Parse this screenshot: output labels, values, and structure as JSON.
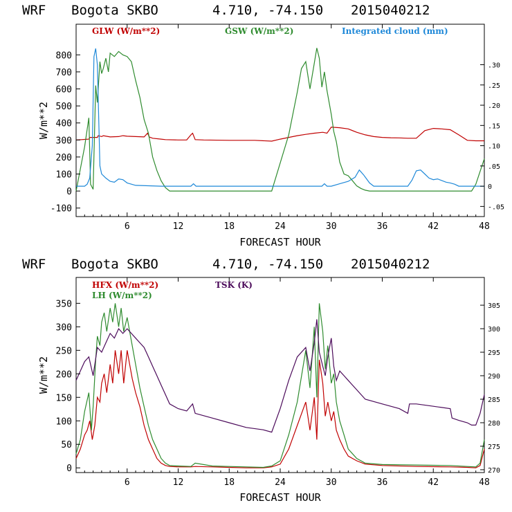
{
  "chart_data": [
    {
      "type": "line",
      "header": {
        "model": "WRF",
        "station": "Bogota SKBO",
        "coords": "4.710, -74.150",
        "init": "2015040212"
      },
      "xlabel": "FORECAST HOUR",
      "ylabel": "W/m**2",
      "xlim": [
        0,
        48
      ],
      "ylim": [
        -150,
        980
      ],
      "y2lim": [
        -0.075,
        0.4
      ],
      "x_ticks": [
        "6",
        "12",
        "18",
        "24",
        "30",
        "36",
        "42",
        "48"
      ],
      "y_ticks": [
        "-100",
        "0",
        "100",
        "200",
        "300",
        "400",
        "500",
        "600",
        "700",
        "800"
      ],
      "y2_ticks": [
        "-.05",
        "0",
        ".05",
        ".10",
        ".15",
        ".20",
        ".25",
        ".30"
      ],
      "series": [
        {
          "name": "GLW (W/m**2)",
          "color": "#c00000",
          "axis": "left",
          "x": [
            0,
            1.5,
            1.6,
            2.5,
            2.6,
            3,
            3.2,
            4,
            5,
            5.5,
            6,
            7,
            8,
            8.4,
            8.6,
            9,
            10,
            10.5,
            12,
            13,
            13.5,
            13.7,
            14,
            15,
            18,
            21,
            23,
            24,
            25,
            26,
            27,
            28,
            29,
            29.5,
            30,
            31,
            32,
            33,
            34,
            35,
            36,
            37,
            38,
            39,
            40,
            41,
            42,
            43,
            44,
            45,
            46,
            47,
            48
          ],
          "y": [
            300,
            305,
            315,
            315,
            325,
            320,
            325,
            318,
            320,
            325,
            322,
            320,
            318,
            340,
            318,
            310,
            305,
            302,
            300,
            300,
            330,
            340,
            302,
            300,
            298,
            298,
            293,
            305,
            315,
            325,
            333,
            340,
            345,
            340,
            375,
            372,
            365,
            345,
            330,
            320,
            315,
            313,
            312,
            310,
            310,
            355,
            368,
            365,
            360,
            330,
            298,
            295,
            295
          ]
        },
        {
          "name": "GSW (W/m**2)",
          "color": "#2e8b2e",
          "axis": "left",
          "x": [
            0,
            1,
            1.5,
            1.7,
            2,
            2.3,
            2.5,
            2.8,
            3,
            3.2,
            3.5,
            3.8,
            4,
            4.5,
            5,
            5.5,
            6,
            6.5,
            7,
            7.5,
            8,
            8.5,
            9,
            9.5,
            10,
            10.5,
            11,
            22.5,
            23,
            25,
            26,
            26.5,
            27,
            27.5,
            28,
            28.3,
            28.6,
            28.9,
            29.2,
            29.5,
            30,
            30.3,
            30.6,
            31,
            31.5,
            32,
            32.5,
            33,
            33.5,
            34,
            34.5,
            35,
            46.5,
            47,
            48
          ],
          "y": [
            0,
            260,
            430,
            40,
            10,
            620,
            520,
            760,
            690,
            720,
            780,
            700,
            810,
            790,
            820,
            800,
            790,
            760,
            650,
            550,
            420,
            340,
            200,
            120,
            60,
            20,
            0,
            0,
            0,
            330,
            580,
            720,
            760,
            600,
            750,
            840,
            780,
            610,
            700,
            590,
            450,
            350,
            290,
            170,
            100,
            90,
            60,
            30,
            15,
            5,
            0,
            0,
            0,
            40,
            190
          ]
        },
        {
          "name": "Integrated cloud (mm)",
          "color": "#1e88d8",
          "axis": "right",
          "x": [
            0,
            1,
            1.3,
            1.6,
            1.9,
            2.1,
            2.3,
            2.5,
            2.8,
            3,
            3.5,
            4,
            4.5,
            5,
            5.5,
            6,
            7,
            10,
            13.5,
            13.8,
            14.1,
            15,
            20,
            23,
            28.9,
            29.2,
            29.5,
            30,
            31,
            32,
            32.8,
            33.3,
            33.8,
            34.5,
            35,
            36,
            39,
            39.5,
            40,
            40.5,
            41,
            41.5,
            42,
            42.5,
            43,
            43.5,
            44,
            44.5,
            45,
            46,
            47,
            48
          ],
          "y": [
            0,
            0,
            0.005,
            0.02,
            0.1,
            0.32,
            0.34,
            0.3,
            0.05,
            0.03,
            0.02,
            0.012,
            0.01,
            0.018,
            0.016,
            0.008,
            0.002,
            0,
            0,
            0.006,
            0,
            0,
            0,
            0,
            0,
            0.006,
            0,
            0,
            0.006,
            0.012,
            0.022,
            0.04,
            0.028,
            0.008,
            0,
            0,
            0,
            0.015,
            0.038,
            0.04,
            0.03,
            0.02,
            0.016,
            0.018,
            0.014,
            0.01,
            0.008,
            0.005,
            0,
            0,
            0,
            0
          ]
        }
      ]
    },
    {
      "type": "line",
      "header": {
        "model": "WRF",
        "station": "Bogota SKBO",
        "coords": "4.710, -74.150",
        "init": "2015040212"
      },
      "xlabel": "FORECAST HOUR",
      "ylabel": "W/m**2",
      "xlim": [
        0,
        48
      ],
      "ylim": [
        -10,
        405
      ],
      "y2lim": [
        269.4,
        310.9
      ],
      "x_ticks": [
        "6",
        "12",
        "18",
        "24",
        "30",
        "36",
        "42",
        "48"
      ],
      "y_ticks": [
        "0",
        "50",
        "100",
        "150",
        "200",
        "250",
        "300",
        "350"
      ],
      "y2_ticks": [
        "270",
        "275",
        "280",
        "285",
        "290",
        "295",
        "300",
        "305"
      ],
      "series": [
        {
          "name": "HFX (W/m**2)",
          "color": "#c00000",
          "axis": "left",
          "x": [
            0,
            0.5,
            1,
            1.3,
            1.6,
            1.9,
            2.2,
            2.5,
            2.8,
            3,
            3.3,
            3.6,
            4,
            4.3,
            4.6,
            5,
            5.3,
            5.6,
            6,
            6.3,
            6.6,
            7,
            7.5,
            8,
            8.5,
            9,
            9.5,
            10,
            10.5,
            11,
            12,
            13.5,
            14,
            16,
            18,
            20,
            22,
            23,
            24,
            25,
            26,
            27,
            27.5,
            28,
            28.3,
            28.6,
            29,
            29.3,
            29.6,
            30,
            30.3,
            30.6,
            31,
            31.5,
            32,
            33,
            34,
            36,
            40,
            44,
            46,
            47,
            47.5,
            48
          ],
          "y": [
            20,
            40,
            70,
            80,
            100,
            60,
            90,
            150,
            140,
            180,
            200,
            160,
            220,
            180,
            250,
            200,
            250,
            180,
            250,
            220,
            190,
            160,
            130,
            90,
            60,
            40,
            20,
            10,
            5,
            3,
            2,
            2,
            3,
            2,
            1,
            0,
            0,
            2,
            8,
            40,
            90,
            140,
            80,
            150,
            60,
            230,
            180,
            110,
            140,
            100,
            120,
            80,
            60,
            40,
            25,
            15,
            8,
            5,
            3,
            2,
            1,
            0,
            5,
            40
          ]
        },
        {
          "name": "LH (W/m**2)",
          "color": "#2e8b2e",
          "axis": "left",
          "x": [
            0,
            0.5,
            1,
            1.5,
            1.8,
            2,
            2.3,
            2.5,
            2.8,
            3,
            3.3,
            3.6,
            4,
            4.3,
            4.6,
            5,
            5.3,
            5.6,
            6,
            6.3,
            6.6,
            7,
            7.5,
            8,
            8.5,
            9,
            9.5,
            10,
            10.5,
            11,
            12,
            13.5,
            14,
            16,
            18,
            20,
            22,
            23,
            24,
            25,
            26,
            27,
            27.5,
            28,
            28.3,
            28.6,
            29,
            29.3,
            29.6,
            30,
            30.3,
            30.6,
            31,
            31.5,
            32,
            33,
            34,
            36,
            40,
            44,
            46,
            47,
            47.5,
            48
          ],
          "y": [
            30,
            60,
            120,
            160,
            80,
            130,
            230,
            280,
            260,
            310,
            330,
            290,
            340,
            310,
            350,
            300,
            340,
            290,
            320,
            290,
            260,
            220,
            170,
            130,
            90,
            60,
            40,
            20,
            10,
            5,
            4,
            3,
            10,
            4,
            3,
            2,
            1,
            4,
            15,
            70,
            140,
            250,
            170,
            300,
            150,
            350,
            290,
            210,
            260,
            180,
            200,
            140,
            100,
            70,
            40,
            20,
            10,
            7,
            6,
            5,
            3,
            2,
            10,
            60
          ]
        },
        {
          "name": "TSK (K)",
          "color": "#4b0a5a",
          "axis": "right",
          "x": [
            0,
            0.5,
            1,
            1.5,
            2,
            2.5,
            3,
            3.5,
            4,
            4.5,
            5,
            5.5,
            6,
            6.5,
            7,
            7.5,
            8,
            8.5,
            9,
            9.5,
            10,
            10.5,
            11,
            12,
            13,
            13.7,
            14,
            15,
            16,
            18,
            20,
            22,
            23,
            24,
            25,
            26,
            27,
            27.5,
            28,
            28.3,
            28.6,
            29,
            29.3,
            29.6,
            30,
            30.3,
            30.6,
            31,
            31.5,
            32,
            33,
            34,
            36,
            38,
            39,
            39.2,
            40,
            42,
            44,
            44.2,
            45,
            46,
            46.5,
            47,
            47.5,
            48
          ],
          "y": [
            289,
            291,
            293,
            294,
            290,
            296,
            295,
            297,
            299,
            298,
            300,
            299,
            300,
            299,
            298,
            297,
            296,
            294,
            292,
            290,
            288,
            286,
            284,
            283,
            282.5,
            284,
            282,
            281.5,
            281,
            280,
            279,
            278.5,
            278,
            283,
            289,
            294,
            296,
            291,
            297,
            302,
            295,
            292,
            290,
            294,
            298,
            292,
            289,
            291,
            290,
            289,
            287,
            285,
            284,
            283,
            282,
            284,
            284,
            283.5,
            283,
            281,
            280.5,
            280,
            279.5,
            279.5,
            282,
            286
          ]
        }
      ]
    }
  ]
}
